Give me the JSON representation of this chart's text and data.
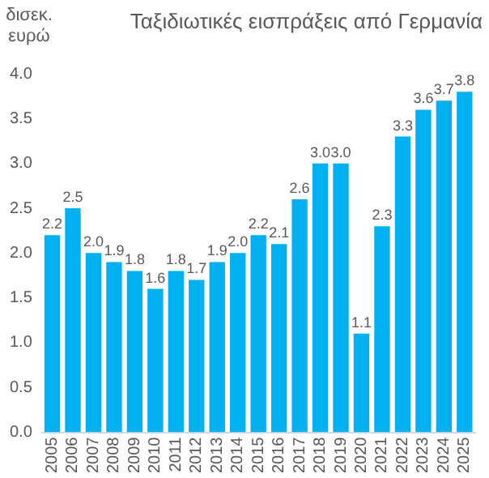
{
  "chart_data": {
    "type": "bar",
    "title": "Ταξιδιωτικές εισπράξεις από Γερμανία",
    "ylabel": "δισεκ. ευρώ",
    "categories": [
      "2005",
      "2006",
      "2007",
      "2008",
      "2009",
      "2010",
      "2011",
      "2012",
      "2013",
      "2014",
      "2015",
      "2016",
      "2017",
      "2018",
      "2019",
      "2020",
      "2021",
      "2022",
      "2023",
      "2024",
      "2025"
    ],
    "values": [
      2.2,
      2.5,
      2.0,
      1.9,
      1.8,
      1.6,
      1.8,
      1.7,
      1.9,
      2.0,
      2.2,
      2.1,
      2.6,
      3.0,
      3.0,
      1.1,
      2.3,
      3.3,
      3.6,
      3.7,
      3.8
    ],
    "color": "#00b0f0",
    "ylim": [
      0,
      4
    ],
    "yticks": [
      {
        "value": 0,
        "label": "0.0"
      },
      {
        "value": 0.5,
        "label": "0.5"
      },
      {
        "value": 1,
        "label": "1.0"
      },
      {
        "value": 1.5,
        "label": "1.5"
      },
      {
        "value": 2,
        "label": "2.0"
      },
      {
        "value": 2.5,
        "label": "2.5"
      },
      {
        "value": 3,
        "label": "3.0"
      },
      {
        "value": 3.5,
        "label": "3.5"
      },
      {
        "value": 4,
        "label": "4.0"
      }
    ],
    "value_labels": [
      "2.2",
      "2.5",
      "2.0",
      "1.9",
      "1.8",
      "1.6",
      "1.8",
      "1.7",
      "1.9",
      "2.0",
      "2.2",
      "2.1",
      "2.6",
      "3.0",
      "3.0",
      "1.1",
      "2.3",
      "3.3",
      "3.6",
      "3.7",
      "3.8"
    ],
    "grid": false,
    "legend": false
  }
}
